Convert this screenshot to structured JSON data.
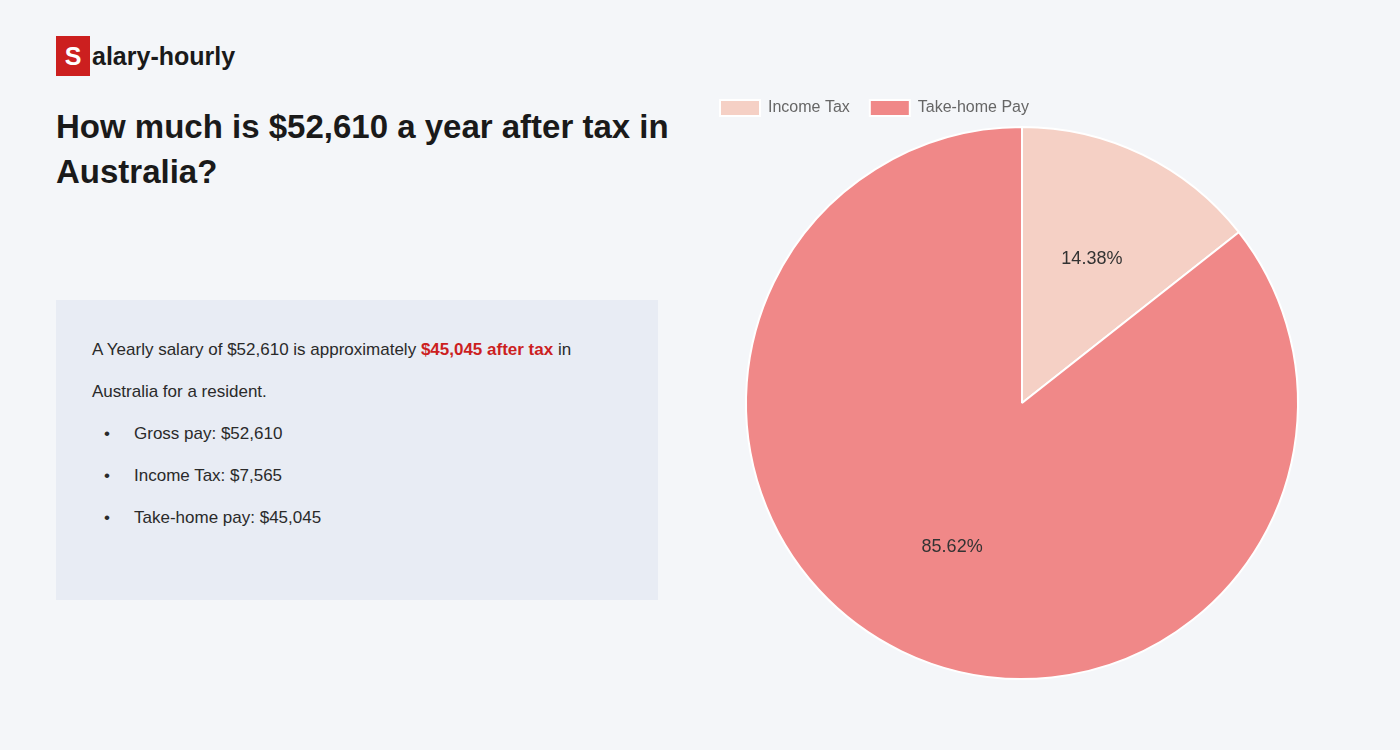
{
  "chart_data": {
    "type": "pie",
    "title": "How much is $52,610 a year after tax in\nAustralia?",
    "categories": [
      "Income Tax",
      "Take-home Pay"
    ],
    "values": [
      14.38,
      85.62
    ],
    "value_labels": [
      "14.38%",
      "85.62%"
    ],
    "colors": [
      "#f5d0c5",
      "#f08888"
    ],
    "data_labels": true,
    "legend": "top",
    "annotations": [
      [
        {
          "text": "S",
          "color": "#cc1f1f"
        },
        {
          "text": "alary-hourly"
        }
      ],
      [
        {
          "text": "A Yearly salary of $52,610 is approximately "
        },
        {
          "text": "$45,045 after tax",
          "color": "#cc1f1f"
        },
        {
          "text": " in"
        }
      ],
      [
        {
          "text": "Australia for a resident."
        }
      ],
      [
        {
          "text": "•"
        },
        {
          "text": "Gross pay: $52,610"
        }
      ],
      [
        {
          "text": "•"
        },
        {
          "text": "Income Tax: $7,565"
        }
      ],
      [
        {
          "text": "•"
        },
        {
          "text": "Take-home pay: $45,045"
        }
      ]
    ]
  }
}
